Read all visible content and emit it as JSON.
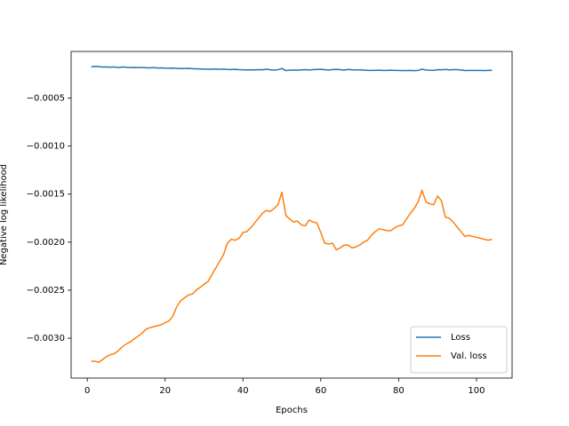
{
  "chart_data": {
    "type": "line",
    "xlabel": "Epochs",
    "ylabel": "Negative log likelihood",
    "x": [
      1,
      2,
      3,
      4,
      5,
      6,
      7,
      8,
      9,
      10,
      11,
      12,
      13,
      14,
      15,
      16,
      17,
      18,
      19,
      20,
      21,
      22,
      23,
      24,
      25,
      26,
      27,
      28,
      29,
      30,
      31,
      32,
      33,
      34,
      35,
      36,
      37,
      38,
      39,
      40,
      41,
      42,
      43,
      44,
      45,
      46,
      47,
      48,
      49,
      50,
      51,
      52,
      53,
      54,
      55,
      56,
      57,
      58,
      59,
      60,
      61,
      62,
      63,
      64,
      65,
      66,
      67,
      68,
      69,
      70,
      71,
      72,
      73,
      74,
      75,
      76,
      77,
      78,
      79,
      80,
      81,
      82,
      83,
      84,
      85,
      86,
      87,
      88,
      89,
      90,
      91,
      92,
      93,
      94,
      95,
      96,
      97,
      98,
      99,
      100,
      101,
      102,
      103,
      104
    ],
    "series": [
      {
        "name": "Loss",
        "color": "#1f77b4",
        "values": [
          -0.000175,
          -0.00017,
          -0.000172,
          -0.000178,
          -0.000176,
          -0.000179,
          -0.000176,
          -0.000182,
          -0.000177,
          -0.000179,
          -0.000183,
          -0.000181,
          -0.000182,
          -0.000182,
          -0.000184,
          -0.000186,
          -0.000183,
          -0.000187,
          -0.000186,
          -0.000188,
          -0.000189,
          -0.000188,
          -0.00019,
          -0.000193,
          -0.000192,
          -0.000191,
          -0.000194,
          -0.000195,
          -0.000197,
          -0.000199,
          -0.0002,
          -0.0002,
          -0.000198,
          -0.000201,
          -0.000199,
          -0.000202,
          -0.000203,
          -0.000201,
          -0.000204,
          -0.000206,
          -0.000207,
          -0.000206,
          -0.000207,
          -0.000205,
          -0.000206,
          -0.0002,
          -0.000206,
          -0.000209,
          -0.000205,
          -0.000192,
          -0.000214,
          -0.00021,
          -0.000208,
          -0.00021,
          -0.000207,
          -0.000205,
          -0.000208,
          -0.000205,
          -0.000202,
          -0.000201,
          -0.000204,
          -0.000208,
          -0.000203,
          -0.000202,
          -0.000204,
          -0.000209,
          -0.000202,
          -0.000206,
          -0.000207,
          -0.000207,
          -0.000209,
          -0.000211,
          -0.000212,
          -0.000211,
          -0.00021,
          -0.000212,
          -0.000213,
          -0.00021,
          -0.000212,
          -0.000212,
          -0.000214,
          -0.000214,
          -0.000212,
          -0.000215,
          -0.000212,
          -0.0002,
          -0.000208,
          -0.00021,
          -0.000211,
          -0.000205,
          -0.000206,
          -0.000202,
          -0.000207,
          -0.000204,
          -0.000205,
          -0.000208,
          -0.000214,
          -0.000213,
          -0.000212,
          -0.000213,
          -0.000212,
          -0.000214,
          -0.000212,
          -0.000211
        ]
      },
      {
        "name": "Val. loss",
        "color": "#ff7f0e",
        "values": [
          -0.00324,
          -0.00324,
          -0.00325,
          -0.00322,
          -0.00319,
          -0.00317,
          -0.00316,
          -0.00313,
          -0.00309,
          -0.00306,
          -0.00304,
          -0.00301,
          -0.00298,
          -0.00295,
          -0.00291,
          -0.00289,
          -0.00288,
          -0.00287,
          -0.00286,
          -0.00284,
          -0.00282,
          -0.00277,
          -0.00267,
          -0.00261,
          -0.00258,
          -0.00255,
          -0.00254,
          -0.0025,
          -0.00247,
          -0.00244,
          -0.00241,
          -0.00234,
          -0.00227,
          -0.0022,
          -0.00213,
          -0.00201,
          -0.00197,
          -0.00198,
          -0.00196,
          -0.0019,
          -0.00189,
          -0.00185,
          -0.0018,
          -0.00175,
          -0.0017,
          -0.00167,
          -0.00168,
          -0.00165,
          -0.00161,
          -0.00148,
          -0.00172,
          -0.00176,
          -0.00179,
          -0.00178,
          -0.00182,
          -0.00183,
          -0.00177,
          -0.00179,
          -0.0018,
          -0.0019,
          -0.00201,
          -0.00202,
          -0.00201,
          -0.00208,
          -0.00206,
          -0.00203,
          -0.00203,
          -0.00206,
          -0.00205,
          -0.00203,
          -0.002,
          -0.00198,
          -0.00193,
          -0.00189,
          -0.00186,
          -0.00187,
          -0.00188,
          -0.00188,
          -0.00185,
          -0.00183,
          -0.00182,
          -0.00176,
          -0.0017,
          -0.00165,
          -0.00158,
          -0.00146,
          -0.00158,
          -0.0016,
          -0.00161,
          -0.00152,
          -0.00157,
          -0.00174,
          -0.00175,
          -0.00179,
          -0.00184,
          -0.00189,
          -0.00194,
          -0.00193,
          -0.00194,
          -0.00195,
          -0.00196,
          -0.00197,
          -0.00198,
          -0.00197
        ]
      }
    ],
    "xlim": [
      -4.15,
      109.15
    ],
    "xticks": [
      0,
      20,
      40,
      60,
      80,
      100
    ],
    "ylim": [
      -0.003415,
      -1.5e-05
    ],
    "yticks": [
      {
        "value": -0.003,
        "label": "−0.0030"
      },
      {
        "value": -0.0025,
        "label": "−0.0025"
      },
      {
        "value": -0.002,
        "label": "−0.0020"
      },
      {
        "value": -0.0015,
        "label": "−0.0015"
      },
      {
        "value": -0.001,
        "label": "−0.0010"
      },
      {
        "value": -0.0005,
        "label": "−0.0005"
      }
    ],
    "grid": false,
    "legend": "lower right"
  }
}
